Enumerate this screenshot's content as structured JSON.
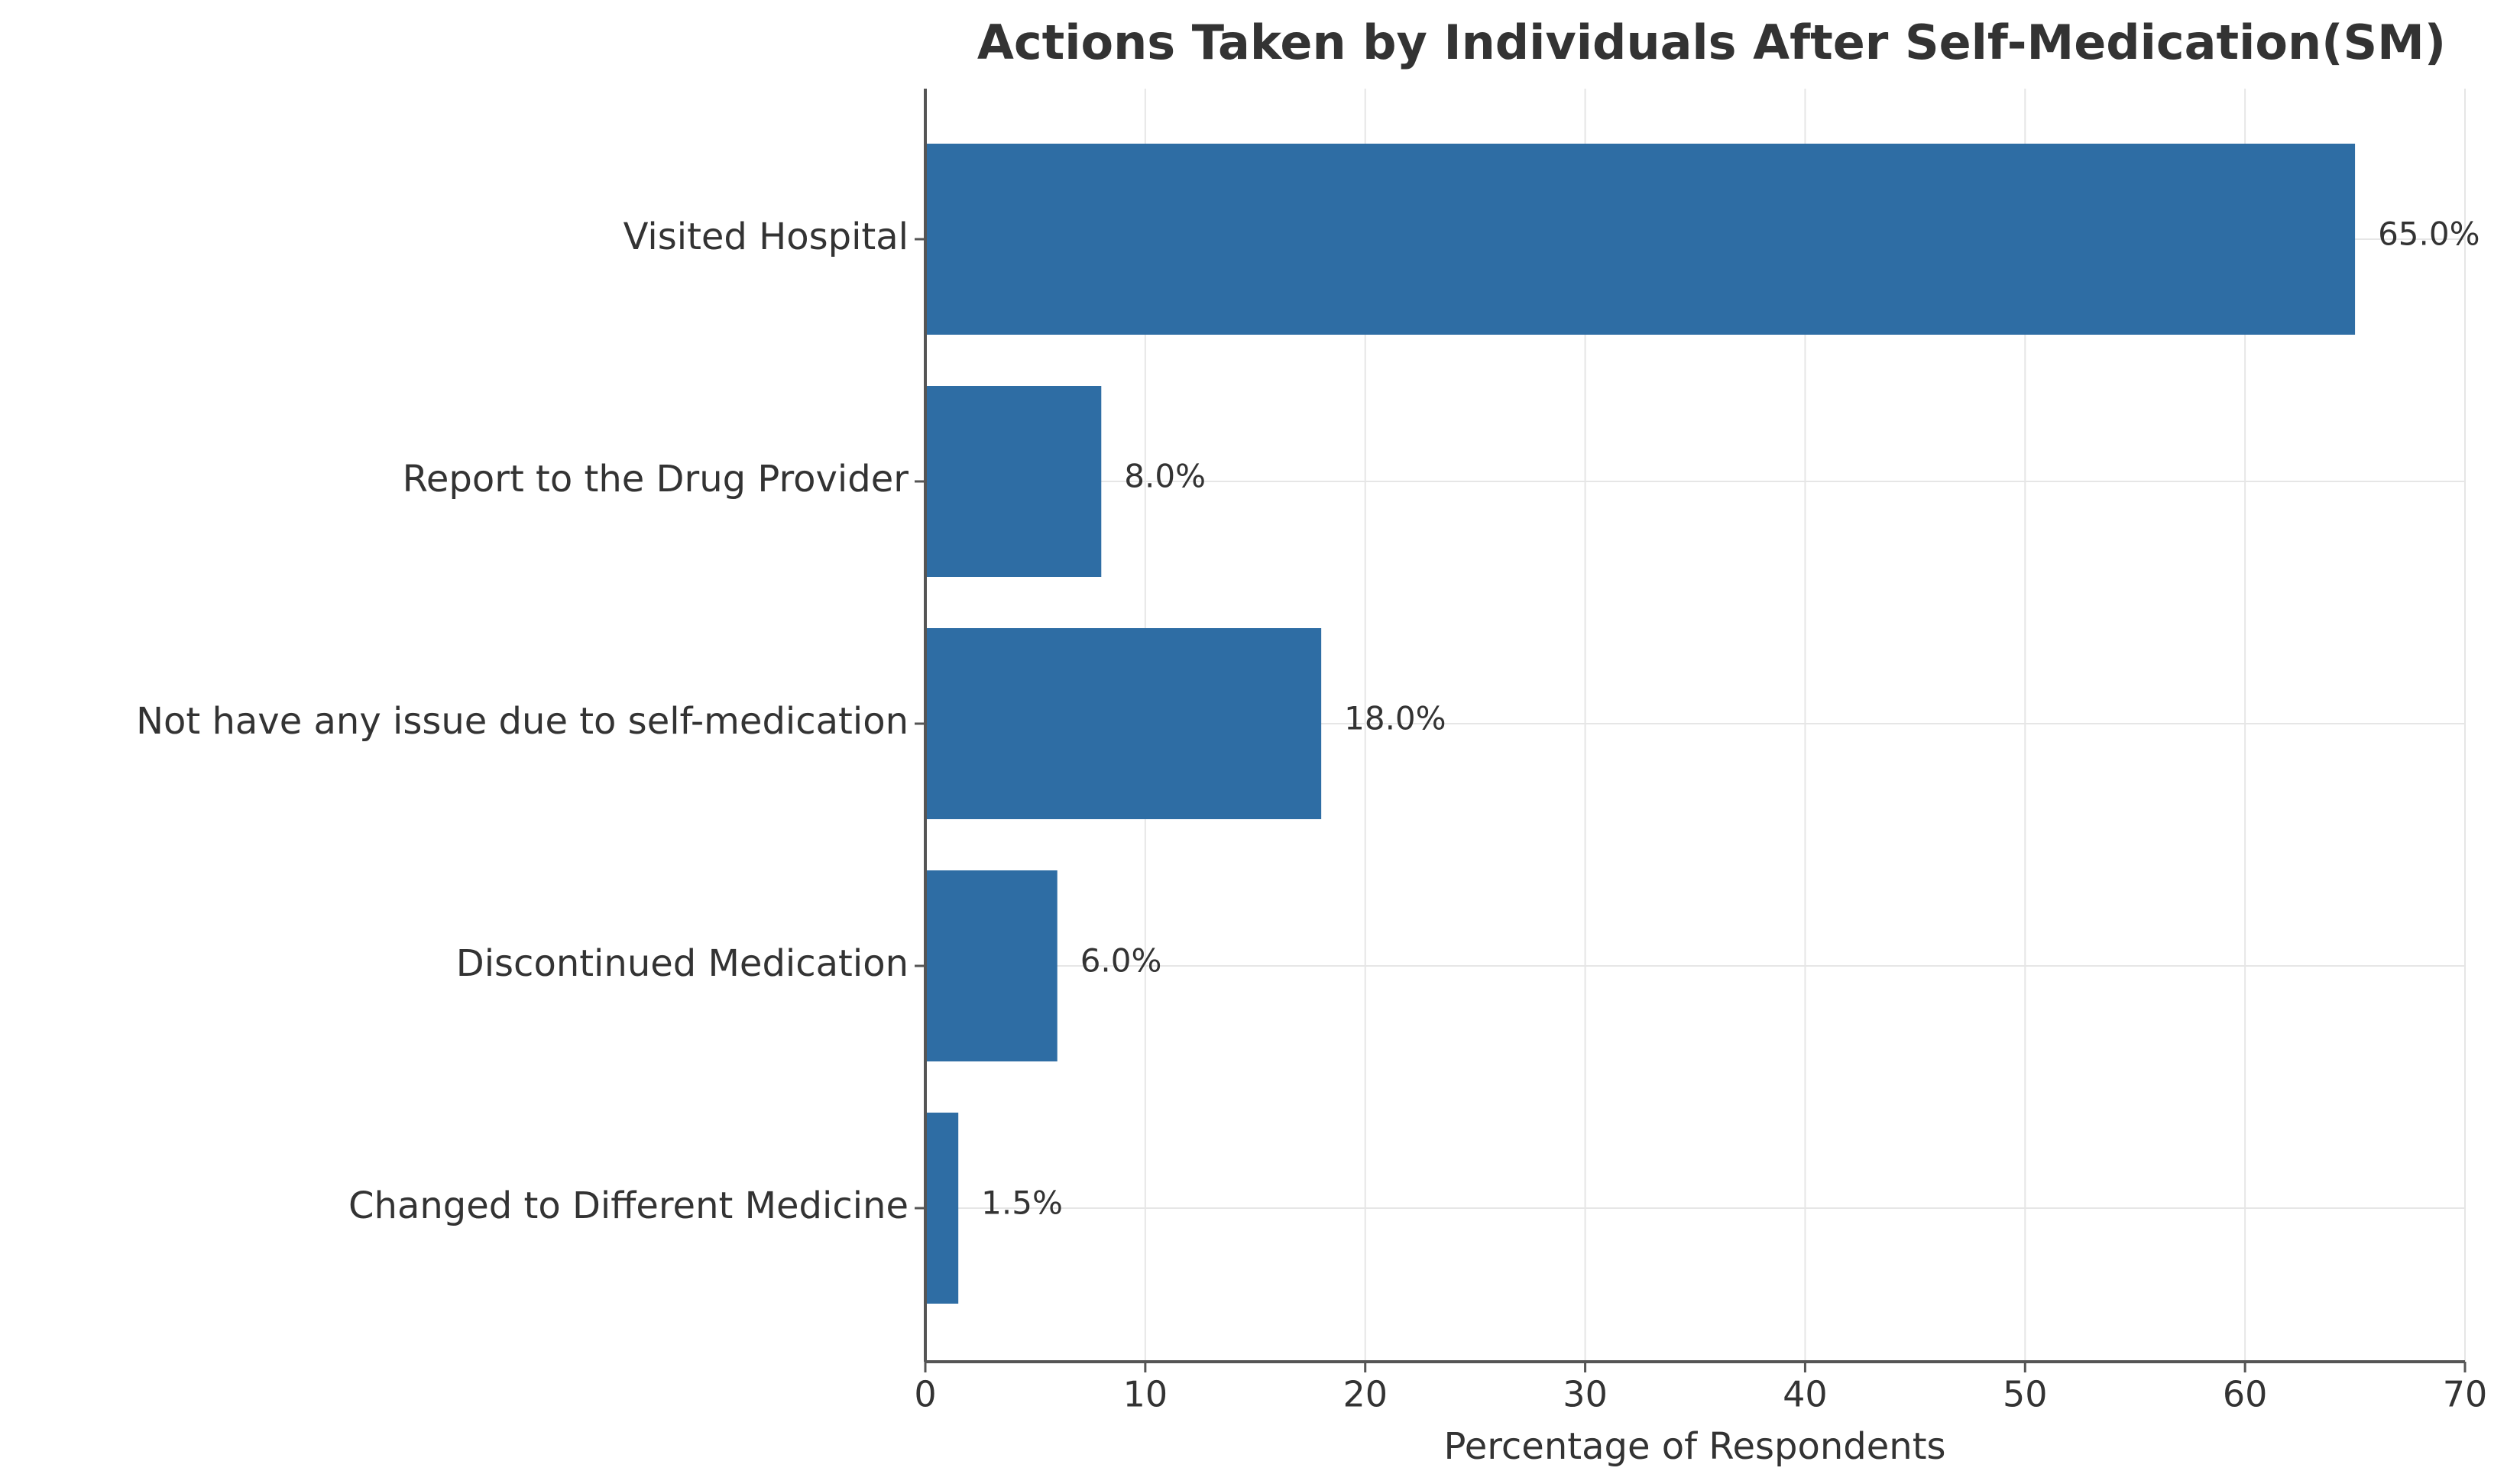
{
  "chart_data": {
    "type": "bar",
    "orientation": "horizontal",
    "title": "Actions Taken by Individuals After Self-Medication(SM)",
    "x_label": "Percentage of Respondents",
    "categories": [
      "Visited Hospital",
      "Report to the Drug Provider",
      "Not have any issue due to self-medication",
      "Discontinued Medication",
      "Changed to Different Medicine"
    ],
    "values": [
      65,
      8,
      18,
      6,
      1.5
    ],
    "value_labels": [
      "65.0%",
      "8.0%",
      "18.0%",
      "6.0%",
      "1.5%"
    ],
    "color": "#2e6da4",
    "xlim": [
      0,
      70
    ],
    "xticks": [
      0,
      10,
      20,
      30,
      40,
      50,
      60,
      70
    ],
    "grid": true
  }
}
